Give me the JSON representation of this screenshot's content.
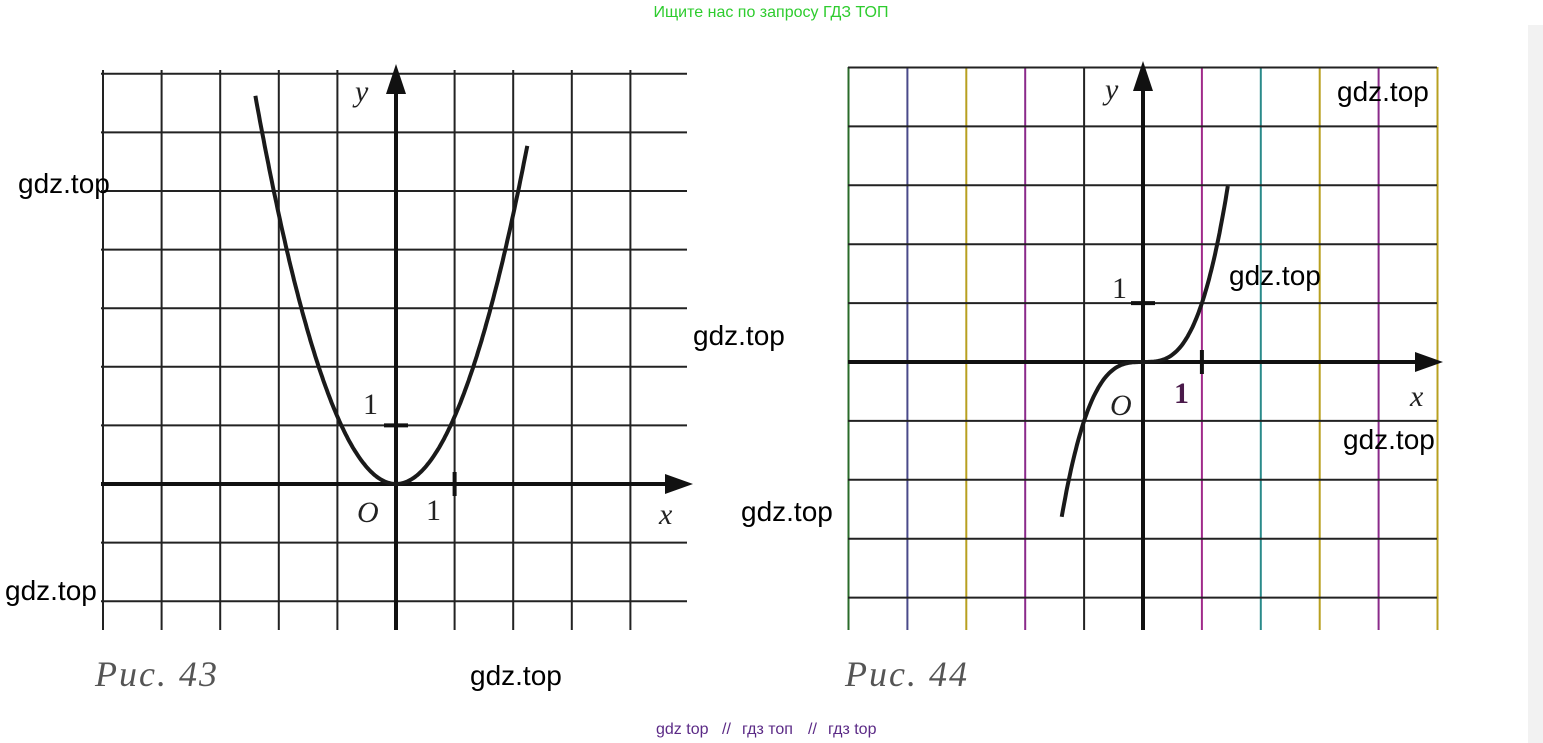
{
  "banner": "Ищите нас по запросу ГДЗ ТОП",
  "figures": [
    {
      "caption": "Рис. 43",
      "axis_y": "y",
      "axis_x": "x",
      "origin": "O",
      "unit_y": "1",
      "unit_x": "1"
    },
    {
      "caption": "Рис. 44",
      "axis_y": "y",
      "axis_x": "x",
      "origin": "O",
      "unit_y": "1",
      "unit_x": "1"
    }
  ],
  "watermarks": [
    "gdz.top",
    "gdz.top",
    "gdz.top",
    "gdz.top",
    "gdz.top",
    "gdz.top",
    "gdz.top",
    "gdz.top"
  ],
  "footer": [
    "gdz top",
    "//",
    "гдз топ",
    "//",
    "гдз top"
  ]
}
